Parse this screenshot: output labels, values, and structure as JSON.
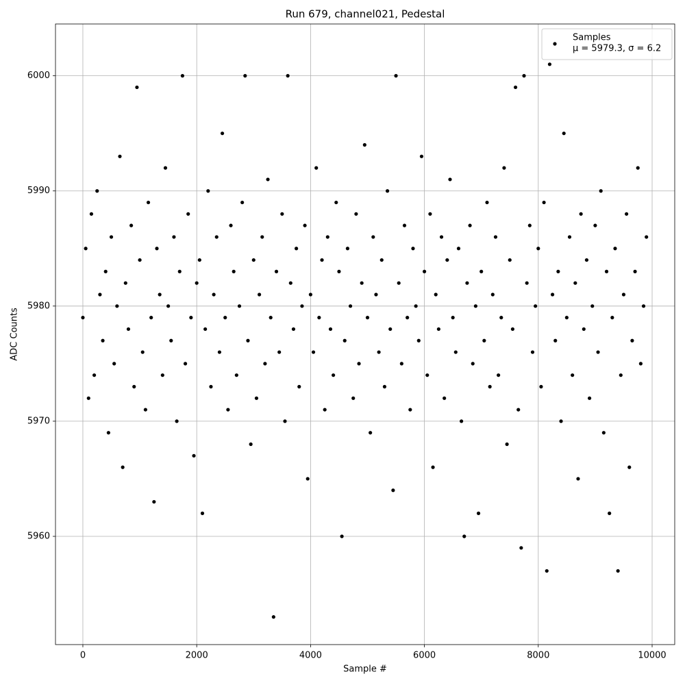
{
  "chart_data": {
    "type": "scatter",
    "title": "Run 679, channel021, Pedestal",
    "xlabel": "Sample #",
    "ylabel": "ADC Counts",
    "legend_position": "upper right",
    "annotation": "μ = 5979.3, σ = 6.2",
    "grid": true,
    "xlim": [
      -481,
      10397
    ],
    "ylim": [
      5950.6,
      6004.5
    ],
    "xticks": [
      0,
      2000,
      4000,
      6000,
      8000,
      10000
    ],
    "yticks": [
      5960,
      5970,
      5980,
      5990,
      6000
    ],
    "series": [
      {
        "name": "Samples",
        "color": "#000000",
        "x": [
          0,
          50,
          100,
          150,
          200,
          250,
          300,
          350,
          400,
          450,
          500,
          550,
          600,
          650,
          700,
          750,
          800,
          850,
          900,
          950,
          1000,
          1050,
          1100,
          1150,
          1200,
          1250,
          1300,
          1350,
          1400,
          1450,
          1500,
          1550,
          1600,
          1650,
          1700,
          1750,
          1800,
          1850,
          1900,
          1950,
          2000,
          2050,
          2100,
          2150,
          2200,
          2250,
          2300,
          2350,
          2400,
          2450,
          2500,
          2550,
          2600,
          2650,
          2700,
          2750,
          2800,
          2850,
          2900,
          2950,
          3000,
          3050,
          3100,
          3150,
          3200,
          3250,
          3300,
          3350,
          3400,
          3450,
          3500,
          3550,
          3600,
          3650,
          3700,
          3750,
          3800,
          3850,
          3900,
          3950,
          4000,
          4050,
          4100,
          4150,
          4200,
          4250,
          4300,
          4350,
          4400,
          4450,
          4500,
          4550,
          4600,
          4650,
          4700,
          4750,
          4800,
          4850,
          4900,
          4950,
          5000,
          5050,
          5100,
          5150,
          5200,
          5250,
          5300,
          5350,
          5400,
          5450,
          5500,
          5550,
          5600,
          5650,
          5700,
          5750,
          5800,
          5850,
          5900,
          5950,
          6000,
          6050,
          6100,
          6150,
          6200,
          6250,
          6300,
          6350,
          6400,
          6450,
          6500,
          6550,
          6600,
          6650,
          6700,
          6750,
          6800,
          6850,
          6900,
          6950,
          7000,
          7050,
          7100,
          7150,
          7200,
          7250,
          7300,
          7350,
          7400,
          7450,
          7500,
          7550,
          7600,
          7650,
          7700,
          7750,
          7800,
          7850,
          7900,
          7950,
          8000,
          8050,
          8100,
          8150,
          8200,
          8250,
          8300,
          8350,
          8400,
          8450,
          8500,
          8550,
          8600,
          8650,
          8700,
          8750,
          8800,
          8850,
          8900,
          8950,
          9000,
          9050,
          9100,
          9150,
          9200,
          9250,
          9300,
          9350,
          9400,
          9450,
          9500,
          9550,
          9600,
          9650,
          9700,
          9750,
          9800,
          9850,
          9900
        ],
        "values": [
          5979,
          5985,
          5972,
          5988,
          5974,
          5990,
          5981,
          5977,
          5983,
          5969,
          5986,
          5975,
          5980,
          5993,
          5966,
          5982,
          5978,
          5987,
          5973,
          5999,
          5984,
          5976,
          5971,
          5989,
          5979,
          5963,
          5985,
          5981,
          5974,
          5992,
          5980,
          5977,
          5986,
          5970,
          5983,
          6000,
          5975,
          5988,
          5979,
          5967,
          5982,
          5984,
          5962,
          5978,
          5990,
          5973,
          5981,
          5986,
          5976,
          5995,
          5979,
          5971,
          5987,
          5983,
          5974,
          5980,
          5989,
          6000,
          5977,
          5968,
          5984,
          5972,
          5981,
          5986,
          5975,
          5991,
          5979,
          5953,
          5983,
          5976,
          5988,
          5970,
          6000,
          5982,
          5978,
          5985,
          5973,
          5980,
          5987,
          5965,
          5981,
          5976,
          5992,
          5979,
          5984,
          5971,
          5986,
          5978,
          5974,
          5989,
          5983,
          5960,
          5977,
          5985,
          5980,
          5972,
          5988,
          5975,
          5982,
          5994,
          5979,
          5969,
          5986,
          5981,
          5976,
          5984,
          5973,
          5990,
          5978,
          5964,
          6000,
          5982,
          5975,
          5987,
          5979,
          5971,
          5985,
          5980,
          5977,
          5993,
          5983,
          5974,
          5988,
          5966,
          5981,
          5978,
          5986,
          5972,
          5984,
          5991,
          5979,
          5976,
          5985,
          5970,
          5960,
          5982,
          5987,
          5975,
          5980,
          5962,
          5983,
          5977,
          5989,
          5973,
          5981,
          5986,
          5974,
          5979,
          5992,
          5968,
          5984,
          5978,
          5999,
          5971,
          5959,
          6000,
          5982,
          5987,
          5976,
          5980,
          5985,
          5973,
          5989,
          5957,
          6001,
          5981,
          5977,
          5983,
          5970,
          5995,
          5979,
          5986,
          5974,
          5982,
          5965,
          5988,
          5978,
          5984,
          5972,
          5980,
          5987,
          5976,
          5990,
          5969,
          5983,
          5962,
          5979,
          5985,
          5957,
          5974,
          5981,
          5988,
          5966,
          5977,
          5983,
          5992,
          5975,
          5980,
          5986
        ]
      }
    ]
  }
}
